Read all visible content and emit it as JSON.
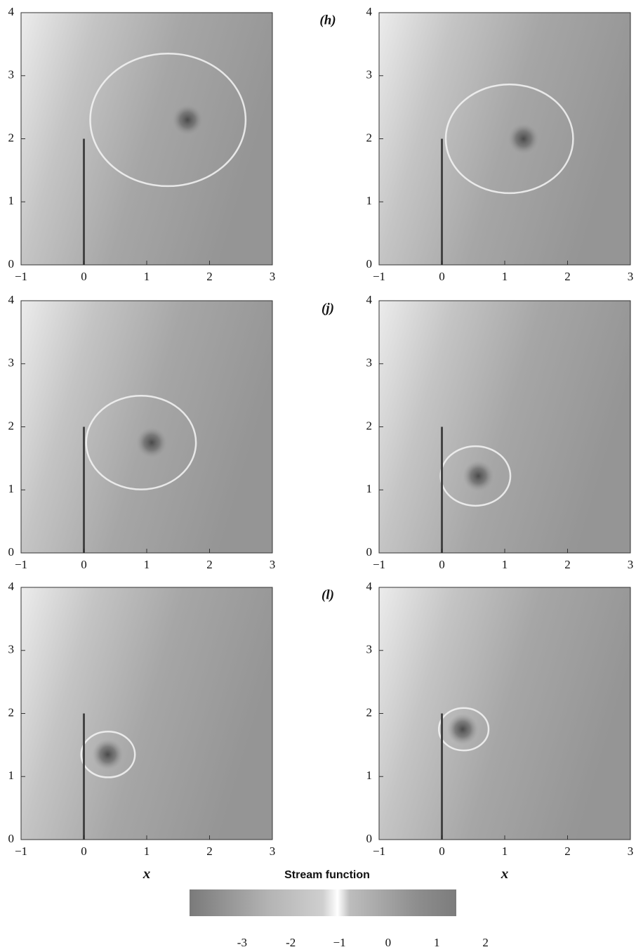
{
  "chart_data": [
    {
      "type": "field",
      "label": "(h)",
      "xlim": [
        -1,
        3
      ],
      "ylim": [
        0,
        4
      ],
      "xticks": [
        {
          "value": -1,
          "label": "−1"
        },
        0,
        1,
        2,
        3
      ],
      "yticks": [
        0,
        1,
        2,
        3,
        4
      ],
      "plate": [
        0,
        2
      ],
      "vortex": {
        "x": 1.65,
        "y": 2.3
      }
    },
    {
      "type": "field",
      "xlim": [
        -1,
        3
      ],
      "ylim": [
        0,
        4
      ],
      "xticks": [
        {
          "value": -1,
          "label": "−1"
        },
        0,
        1,
        2,
        3
      ],
      "yticks": [
        0,
        1,
        2,
        3,
        4
      ],
      "plate": [
        0,
        2
      ],
      "vortex": {
        "x": 1.3,
        "y": 2.0
      }
    },
    {
      "type": "field",
      "xlim": [
        -1,
        3
      ],
      "ylim": [
        0,
        4
      ],
      "xticks": [
        {
          "value": -1,
          "label": "−1"
        },
        0,
        1,
        2,
        3
      ],
      "yticks": [
        0,
        1,
        2,
        3,
        4
      ],
      "plate": [
        0,
        2
      ],
      "vortex": {
        "x": 1.08,
        "y": 1.75
      }
    },
    {
      "type": "field",
      "label": "(j)",
      "xlim": [
        -1,
        3
      ],
      "ylim": [
        0,
        4
      ],
      "xticks": [
        {
          "value": -1,
          "label": "−1"
        },
        0,
        1,
        2,
        3
      ],
      "yticks": [
        0,
        1,
        2,
        3,
        4
      ],
      "plate": [
        0,
        2
      ],
      "vortex": {
        "x": 0.58,
        "y": 1.22
      }
    },
    {
      "type": "field",
      "xlabel": "x",
      "xlim": [
        -1,
        3
      ],
      "ylim": [
        0,
        4
      ],
      "xticks": [
        {
          "value": -1,
          "label": "−1"
        },
        0,
        1,
        2,
        3
      ],
      "yticks": [
        0,
        1,
        2,
        3,
        4
      ],
      "plate": [
        0,
        2
      ],
      "vortex": {
        "x": 0.38,
        "y": 1.35
      }
    },
    {
      "type": "field",
      "label": "(l)",
      "xlabel": "x",
      "xlim": [
        -1,
        3
      ],
      "ylim": [
        0,
        4
      ],
      "xticks": [
        {
          "value": -1,
          "label": "−1"
        },
        0,
        1,
        2,
        3
      ],
      "yticks": [
        0,
        1,
        2,
        3,
        4
      ],
      "plate": [
        0,
        2
      ],
      "vortex": {
        "x": 0.33,
        "y": 1.75
      }
    },
    {
      "type": "colorbar",
      "title": "Stream function",
      "xlim": [
        -4.08,
        1.4
      ],
      "xticks": [
        -3,
        -2,
        {
          "value": -1,
          "label": "−1"
        },
        0,
        1,
        2
      ]
    }
  ]
}
